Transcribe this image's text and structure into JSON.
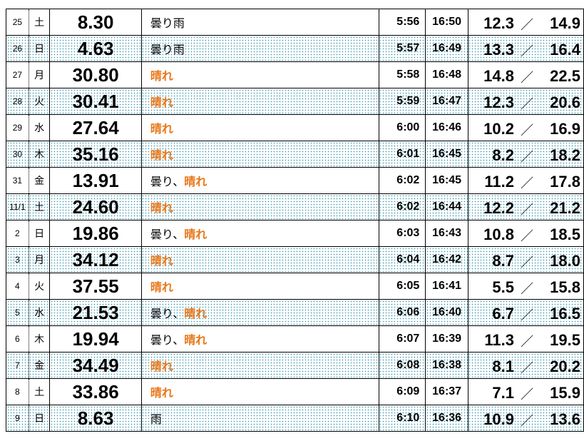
{
  "colors": {
    "sunny": "#e8781a",
    "dot_pattern": "#2a8fa8"
  },
  "separator": "／",
  "rows": [
    {
      "day": "25",
      "weekday": "土",
      "value": "8.30",
      "weather": [
        {
          "text": "曇り雨",
          "sunny": false
        }
      ],
      "sunrise": "5:56",
      "sunset": "16:50",
      "low": "12.3",
      "high": "14.9"
    },
    {
      "day": "26",
      "weekday": "日",
      "value": "4.63",
      "weather": [
        {
          "text": "曇り雨",
          "sunny": false
        }
      ],
      "sunrise": "5:57",
      "sunset": "16:49",
      "low": "13.3",
      "high": "16.4"
    },
    {
      "day": "27",
      "weekday": "月",
      "value": "30.80",
      "weather": [
        {
          "text": "晴れ",
          "sunny": true
        }
      ],
      "sunrise": "5:58",
      "sunset": "16:48",
      "low": "14.8",
      "high": "22.5"
    },
    {
      "day": "28",
      "weekday": "火",
      "value": "30.41",
      "weather": [
        {
          "text": "晴れ",
          "sunny": true
        }
      ],
      "sunrise": "5:59",
      "sunset": "16:47",
      "low": "12.3",
      "high": "20.6"
    },
    {
      "day": "29",
      "weekday": "水",
      "value": "27.64",
      "weather": [
        {
          "text": "晴れ",
          "sunny": true
        }
      ],
      "sunrise": "6:00",
      "sunset": "16:46",
      "low": "10.2",
      "high": "16.9"
    },
    {
      "day": "30",
      "weekday": "木",
      "value": "35.16",
      "weather": [
        {
          "text": "晴れ",
          "sunny": true
        }
      ],
      "sunrise": "6:01",
      "sunset": "16:45",
      "low": "8.2",
      "high": "18.2"
    },
    {
      "day": "31",
      "weekday": "金",
      "value": "13.91",
      "weather": [
        {
          "text": "曇り、",
          "sunny": false
        },
        {
          "text": "晴れ",
          "sunny": true
        }
      ],
      "sunrise": "6:02",
      "sunset": "16:45",
      "low": "11.2",
      "high": "17.8"
    },
    {
      "day": "11/1",
      "weekday": "土",
      "value": "24.60",
      "weather": [
        {
          "text": "晴れ",
          "sunny": true
        }
      ],
      "sunrise": "6:02",
      "sunset": "16:44",
      "low": "12.2",
      "high": "21.2"
    },
    {
      "day": "2",
      "weekday": "日",
      "value": "19.86",
      "weather": [
        {
          "text": "曇り、",
          "sunny": false
        },
        {
          "text": "晴れ",
          "sunny": true
        }
      ],
      "sunrise": "6:03",
      "sunset": "16:43",
      "low": "10.8",
      "high": "18.5"
    },
    {
      "day": "3",
      "weekday": "月",
      "value": "34.12",
      "weather": [
        {
          "text": "晴れ",
          "sunny": true
        }
      ],
      "sunrise": "6:04",
      "sunset": "16:42",
      "low": "8.7",
      "high": "18.0"
    },
    {
      "day": "4",
      "weekday": "火",
      "value": "37.55",
      "weather": [
        {
          "text": "晴れ",
          "sunny": true
        }
      ],
      "sunrise": "6:05",
      "sunset": "16:41",
      "low": "5.5",
      "high": "15.8"
    },
    {
      "day": "5",
      "weekday": "水",
      "value": "21.53",
      "weather": [
        {
          "text": "曇り、",
          "sunny": false
        },
        {
          "text": "晴れ",
          "sunny": true
        }
      ],
      "sunrise": "6:06",
      "sunset": "16:40",
      "low": "6.7",
      "high": "16.5"
    },
    {
      "day": "6",
      "weekday": "木",
      "value": "19.94",
      "weather": [
        {
          "text": "曇り、",
          "sunny": false
        },
        {
          "text": "晴れ",
          "sunny": true
        }
      ],
      "sunrise": "6:07",
      "sunset": "16:39",
      "low": "11.3",
      "high": "19.5"
    },
    {
      "day": "7",
      "weekday": "金",
      "value": "34.49",
      "weather": [
        {
          "text": "晴れ",
          "sunny": true
        }
      ],
      "sunrise": "6:08",
      "sunset": "16:38",
      "low": "8.1",
      "high": "20.2"
    },
    {
      "day": "8",
      "weekday": "土",
      "value": "33.86",
      "weather": [
        {
          "text": "晴れ",
          "sunny": true
        }
      ],
      "sunrise": "6:09",
      "sunset": "16:37",
      "low": "7.1",
      "high": "15.9"
    },
    {
      "day": "9",
      "weekday": "日",
      "value": "8.63",
      "weather": [
        {
          "text": "雨",
          "sunny": false
        }
      ],
      "sunrise": "6:10",
      "sunset": "16:36",
      "low": "10.9",
      "high": "13.6"
    }
  ]
}
